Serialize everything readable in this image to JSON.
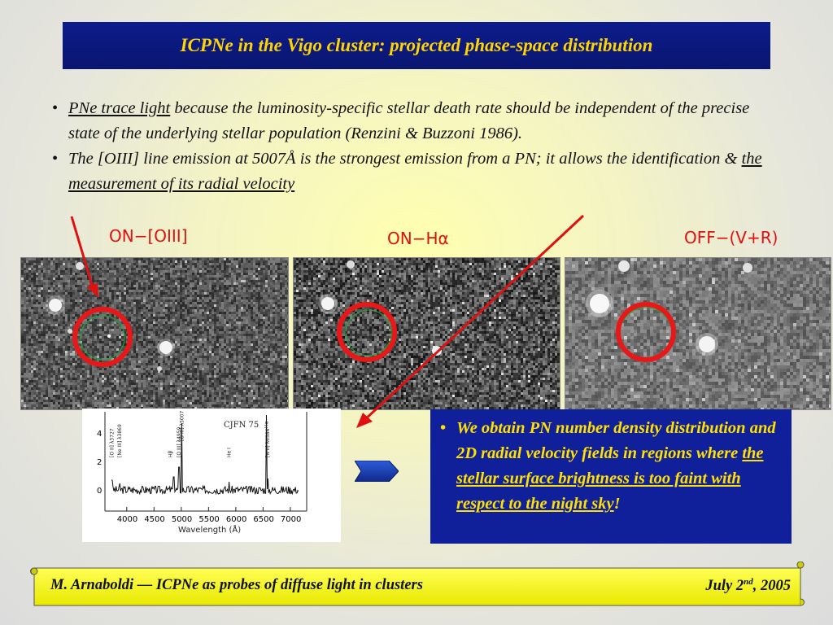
{
  "title": "ICPNe in the Vigo cluster: projected phase-space distribution",
  "bullets": [
    {
      "underlined": "PNe trace light",
      "rest": " because the luminosity-specific stellar death rate should be independent of the precise state of the underlying stellar population (Renzini & Buzzoni 1986)."
    },
    {
      "prefix": "The [OIII] line emission at 5007Å is the strongest emission from a PN; it allows the identification & ",
      "underlined": "the measurement of its radial velocity"
    }
  ],
  "panels": [
    {
      "label": "ON−[OIII]"
    },
    {
      "label": "ON−Hα"
    },
    {
      "label": "OFF−(V+R)"
    }
  ],
  "spectrum": {
    "object": "CJFN 75",
    "xlabel": "Wavelength (Å)",
    "xticks": [
      "4000",
      "4500",
      "5000",
      "5500",
      "6000",
      "6500",
      "7000"
    ],
    "yticks": [
      "4",
      "2",
      "0"
    ],
    "lines": [
      "[O II] λ3727",
      "[Ne III] λ3869",
      "[O III] λ4959",
      "Hβ",
      "[O III] λ5007",
      "He I",
      "Hα",
      "[N II] λ6584"
    ]
  },
  "info": {
    "prefix": "We obtain PN number density distribution and 2D radial velocity fields in regions where ",
    "underlined": "the  stellar surface brightness is too faint with respect to the night sky",
    "suffix": "!"
  },
  "footer": {
    "left": "M. Arnaboldi — ICPNe as probes of diffuse light in clusters",
    "date_prefix": "July 2",
    "date_sup": "nd",
    "date_suffix": ", 2005"
  },
  "colors": {
    "title_bg": "#0c1c8c",
    "title_text": "#ffd400",
    "accent_red": "#e01010",
    "info_bg": "#10209a",
    "info_text": "#ffe000",
    "footer_bg": "#ffff33"
  }
}
